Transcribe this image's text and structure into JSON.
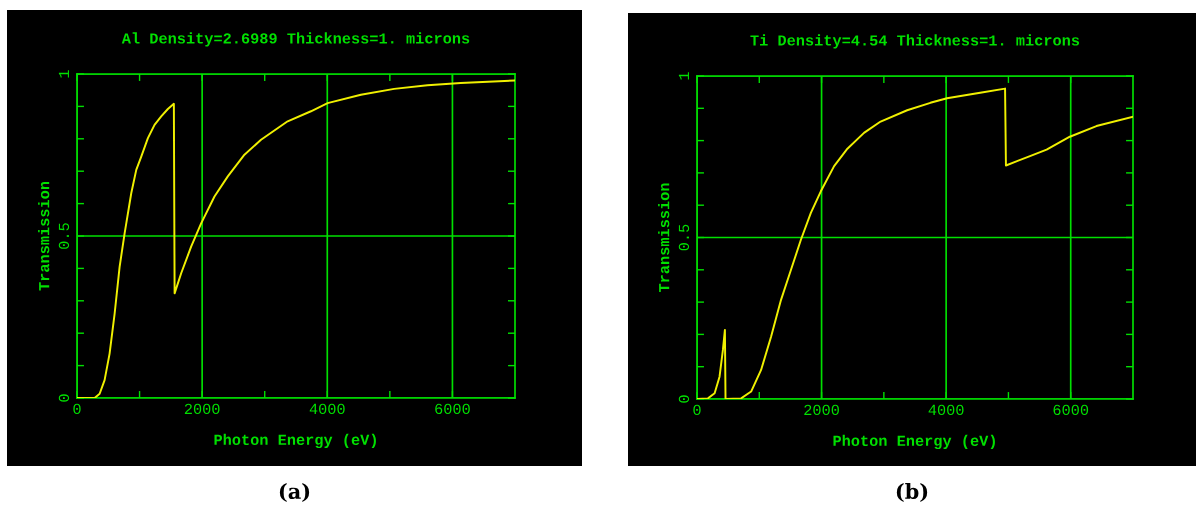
{
  "chart_data": [
    {
      "type": "line",
      "title": "Al Density=2.6989 Thickness=1. microns",
      "xlabel": "Photon Energy (eV)",
      "ylabel": "Transmission",
      "annotations": [
        "(a)"
      ],
      "grid": true,
      "legend": false,
      "xlim": [
        0,
        7000
      ],
      "ylim": [
        0,
        1
      ],
      "xticks": [
        0,
        {
          "value": 1000,
          "label": null
        },
        2000,
        {
          "value": 3000,
          "label": null
        },
        4000,
        {
          "value": 5000,
          "label": null
        },
        6000
      ],
      "yticks": [
        0,
        {
          "value": 0.1,
          "label": null
        },
        {
          "value": 0.2,
          "label": null
        },
        {
          "value": 0.3,
          "label": null
        },
        {
          "value": 0.4,
          "label": null
        },
        0.5,
        {
          "value": 0.6,
          "label": null
        },
        {
          "value": 0.7,
          "label": null
        },
        {
          "value": 0.8,
          "label": null
        },
        {
          "value": 0.9,
          "label": null
        },
        1
      ],
      "series": [
        {
          "color": "#f0f000",
          "x": [
            0,
            282,
            362,
            441,
            521,
            601,
            681,
            761,
            867,
            947,
            1027,
            1133,
            1239,
            1346,
            1452,
            1548,
            1560,
            1665,
            1824,
            1984,
            2197,
            2410,
            2676,
            2941,
            3367,
            3739,
            4005,
            4537,
            5069,
            5601,
            6133,
            7000
          ],
          "values": [
            0,
            0,
            0.013,
            0.055,
            0.137,
            0.26,
            0.405,
            0.508,
            0.632,
            0.704,
            0.745,
            0.802,
            0.843,
            0.869,
            0.892,
            0.908,
            0.323,
            0.385,
            0.467,
            0.539,
            0.622,
            0.684,
            0.751,
            0.797,
            0.854,
            0.885,
            0.91,
            0.936,
            0.954,
            0.965,
            0.972,
            0.98
          ]
        }
      ]
    },
    {
      "type": "line",
      "title": "Ti Density=4.54 Thickness=1. microns",
      "xlabel": "Photon Energy (eV)",
      "ylabel": "Transmission",
      "annotations": [
        "(b)"
      ],
      "grid": true,
      "legend": false,
      "xlim": [
        0,
        7000
      ],
      "ylim": [
        0,
        1
      ],
      "xticks": [
        0,
        {
          "value": 1000,
          "label": null
        },
        2000,
        {
          "value": 3000,
          "label": null
        },
        4000,
        {
          "value": 5000,
          "label": null
        },
        6000
      ],
      "yticks": [
        0,
        {
          "value": 0.1,
          "label": null
        },
        {
          "value": 0.2,
          "label": null
        },
        {
          "value": 0.3,
          "label": null
        },
        {
          "value": 0.4,
          "label": null
        },
        0.5,
        {
          "value": 0.6,
          "label": null
        },
        {
          "value": 0.7,
          "label": null
        },
        {
          "value": 0.8,
          "label": null
        },
        {
          "value": 0.9,
          "label": null
        },
        1
      ],
      "series": [
        {
          "color": "#f0f000",
          "x": [
            0,
            176,
            283,
            362,
            416,
            448,
            458,
            709,
            869,
            1029,
            1189,
            1349,
            1509,
            1668,
            1828,
            1988,
            2201,
            2415,
            2681,
            2948,
            3374,
            3747,
            4014,
            4547,
            4946,
            4960,
            5346,
            5613,
            5986,
            6413,
            7000
          ],
          "values": [
            0,
            0.002,
            0.018,
            0.069,
            0.152,
            0.214,
            0,
            0.002,
            0.023,
            0.09,
            0.193,
            0.307,
            0.4,
            0.493,
            0.576,
            0.643,
            0.721,
            0.775,
            0.824,
            0.859,
            0.894,
            0.917,
            0.931,
            0.948,
            0.961,
            0.723,
            0.752,
            0.772,
            0.812,
            0.845,
            0.874
          ]
        }
      ]
    }
  ]
}
